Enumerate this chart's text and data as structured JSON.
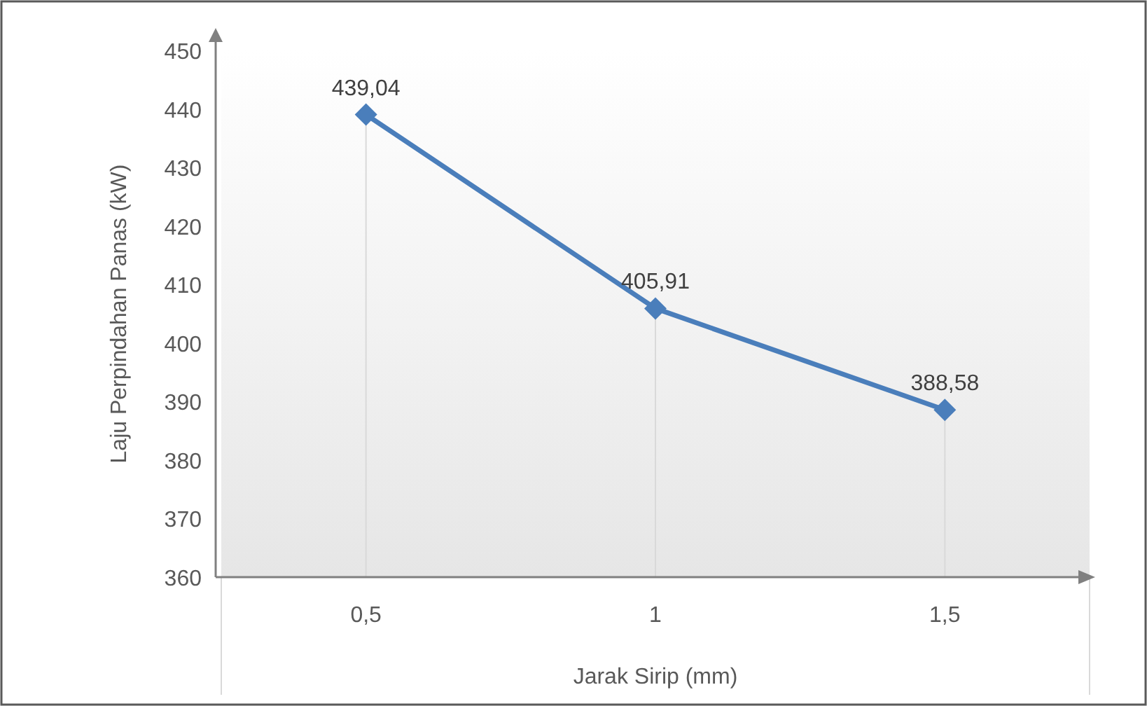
{
  "chart_data": {
    "type": "line",
    "xlabel": "Jarak Sirip (mm)",
    "ylabel": "Laju Perpindahan Panas (kW)",
    "categories": [
      "0,5",
      "1",
      "1,5"
    ],
    "series": [
      {
        "color": "#4a7ebb",
        "values": [
          439.04,
          405.91,
          388.58
        ],
        "value_labels": [
          "439,04",
          "405,91",
          "388,58"
        ]
      }
    ],
    "ylim": [
      360,
      450
    ],
    "yticks": [
      360,
      370,
      380,
      390,
      400,
      410,
      420,
      430,
      440,
      450
    ],
    "grid": "x",
    "marker": "diamond",
    "line_style": "solid"
  }
}
